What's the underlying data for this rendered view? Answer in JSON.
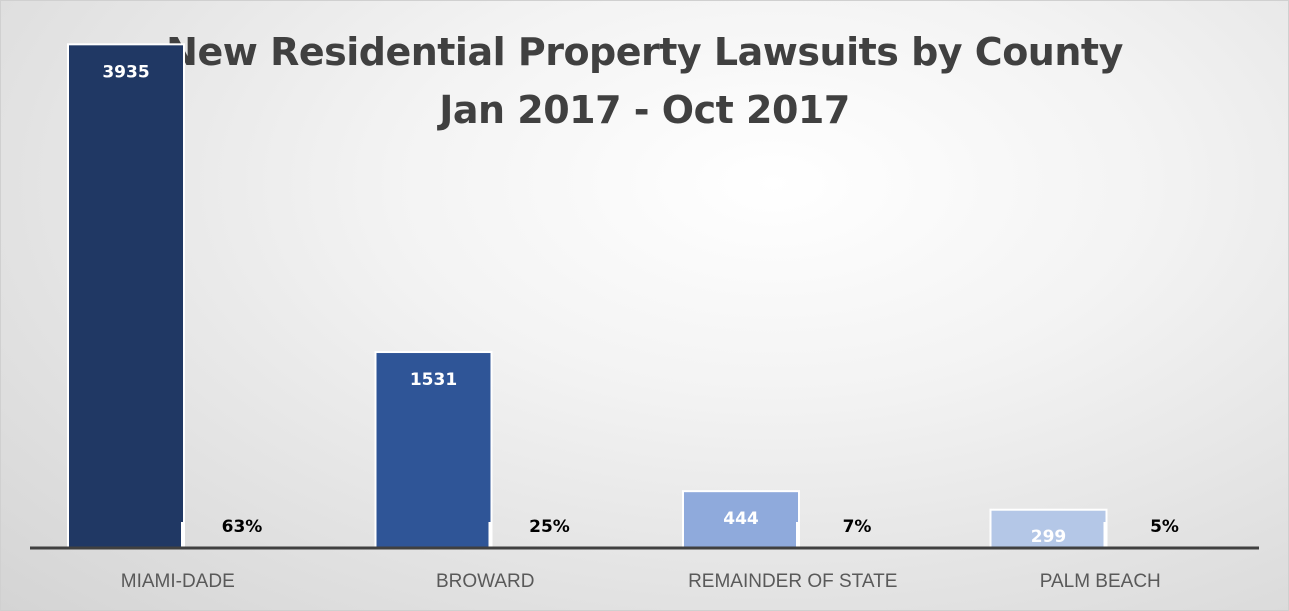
{
  "chart_data": {
    "type": "bar",
    "title_line1": "New Residential Property Lawsuits by County",
    "title_line2": "Jan 2017 - Oct 2017",
    "categories": [
      "MIAMI-DADE",
      "BROWARD",
      "REMAINDER OF STATE",
      "PALM BEACH"
    ],
    "series": [
      {
        "values": [
          3935,
          1531,
          444,
          299
        ]
      },
      {
        "values": [
          63,
          25,
          7,
          5
        ]
      }
    ],
    "percent_labels": [
      "63%",
      "25%",
      "7%",
      "5%"
    ],
    "count_labels": [
      "3935",
      "1531",
      "444",
      "299"
    ],
    "bar_colors": [
      "#203864",
      "#2f5597",
      "#8faadc",
      "#b4c7e7"
    ],
    "count_label_colors": [
      "#ffffff",
      "#ffffff",
      "#ffffff",
      "#ffffff"
    ],
    "percent_label_color": "#000000",
    "axis_color": "#404040",
    "ylim": [
      0,
      4000
    ],
    "grid": false,
    "legend": "none"
  }
}
